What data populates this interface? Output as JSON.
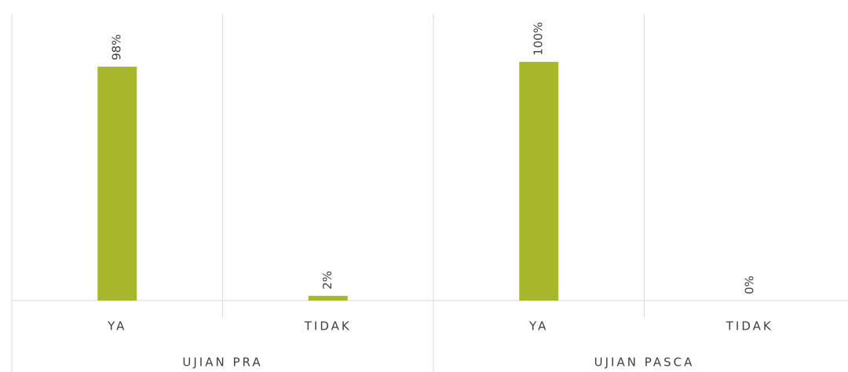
{
  "chart_data": {
    "type": "bar",
    "color": "#a8b82a",
    "ylim": [
      0,
      120
    ],
    "grid": true,
    "groups": [
      {
        "name": "UJIAN PRA",
        "categories": [
          "YA",
          "TIDAK"
        ],
        "values": [
          98,
          2
        ],
        "value_labels": [
          "98%",
          "2%"
        ]
      },
      {
        "name": "UJIAN PASCA",
        "categories": [
          "YA",
          "TIDAK"
        ],
        "values": [
          100,
          0
        ],
        "value_labels": [
          "100%",
          "0%"
        ]
      }
    ]
  }
}
